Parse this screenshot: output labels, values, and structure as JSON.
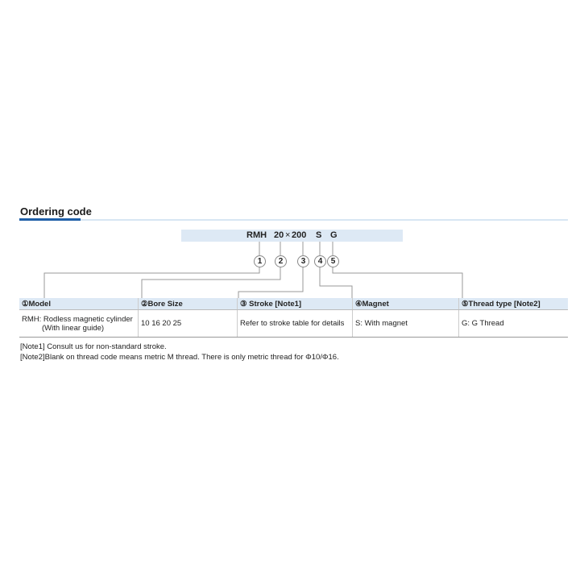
{
  "title": "Ordering code",
  "code": {
    "model": "RMH",
    "bore": "20",
    "sep": "×",
    "stroke": "200",
    "magnet": "S",
    "thread": "G"
  },
  "markers": [
    "1",
    "2",
    "3",
    "4",
    "5"
  ],
  "table": {
    "headers": [
      "①Model",
      "②Bore Size",
      "③ Stroke  [Note1]",
      "④Magnet",
      "⑤Thread type [Note2]"
    ],
    "row": {
      "model_line1": "RMH: Rodless magnetic cylinder",
      "model_line2": "(With linear guide)",
      "bore": "10 16  20  25",
      "stroke": "Refer to stroke table for details",
      "magnet": "S: With magnet",
      "thread": "G: G Thread"
    }
  },
  "notes": [
    "[Note1] Consult us for non-standard stroke.",
    "[Note2]Blank on thread code means metric M thread. There is only metric thread for Φ10/Φ16."
  ]
}
